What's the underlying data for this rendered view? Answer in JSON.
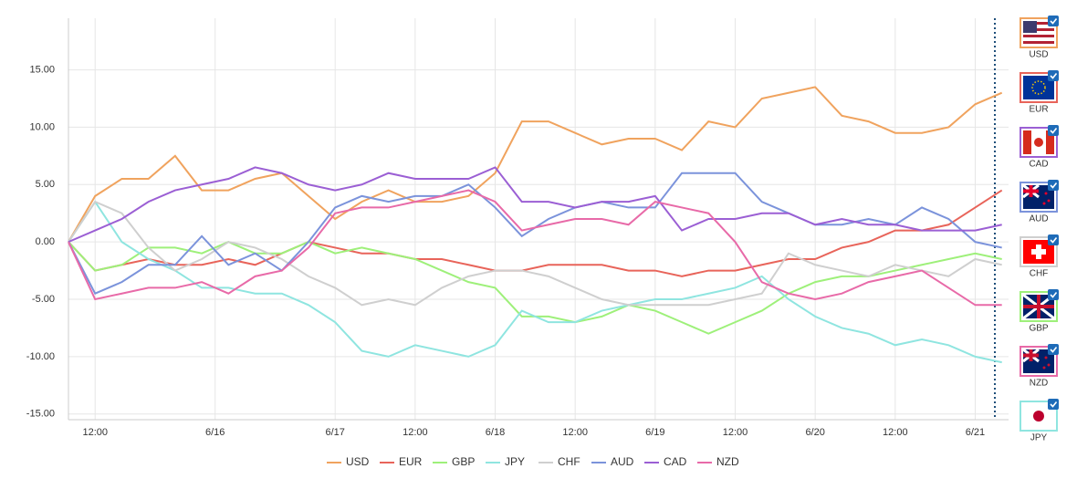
{
  "chart_data": {
    "type": "line",
    "x": [
      0,
      4,
      8,
      12,
      16,
      20,
      24,
      28,
      32,
      36,
      40,
      44,
      48,
      52,
      56,
      60,
      64,
      68,
      72,
      76,
      80,
      84,
      88,
      92,
      96,
      100,
      104,
      108,
      112,
      116,
      120,
      124,
      128,
      132,
      136,
      140
    ],
    "xlim": [
      0,
      141
    ],
    "xticks": [
      {
        "value": 4,
        "label": "12:00"
      },
      {
        "value": 22,
        "label": "6/16"
      },
      {
        "value": 40,
        "label": "6/17"
      },
      {
        "value": 52,
        "label": "12:00"
      },
      {
        "value": 64,
        "label": "6/18"
      },
      {
        "value": 76,
        "label": "12:00"
      },
      {
        "value": 88,
        "label": "6/19"
      },
      {
        "value": 100,
        "label": "12:00"
      },
      {
        "value": 112,
        "label": "6/20"
      },
      {
        "value": 124,
        "label": "12:00"
      },
      {
        "value": 136,
        "label": "6/21"
      }
    ],
    "ylim": [
      -15.5,
      19.5
    ],
    "yticks": [
      {
        "value": -15,
        "label": "-15.00"
      },
      {
        "value": -10,
        "label": "-10.00"
      },
      {
        "value": -5,
        "label": "-5.00"
      },
      {
        "value": 0,
        "label": "0.00"
      },
      {
        "value": 5,
        "label": "5.00"
      },
      {
        "value": 10,
        "label": "10.00"
      },
      {
        "value": 15,
        "label": "15.00"
      }
    ],
    "grid": true,
    "legend": "bottom",
    "series": [
      {
        "name": "USD",
        "color": "#f0a35e",
        "values": [
          0,
          4,
          5.5,
          5.5,
          7.5,
          4.5,
          4.5,
          5.5,
          6,
          4,
          2,
          3.5,
          4.5,
          3.5,
          3.5,
          4,
          6,
          10.5,
          10.5,
          9.5,
          8.5,
          9,
          9,
          8,
          10.5,
          10,
          12.5,
          13,
          13.5,
          11,
          10.5,
          9.5,
          9.5,
          10,
          12,
          13
        ]
      },
      {
        "name": "EUR",
        "color": "#e8645a",
        "values": [
          0,
          -2.5,
          -2,
          -1.5,
          -2,
          -2,
          -1.5,
          -2,
          -1,
          0,
          -0.5,
          -1,
          -1,
          -1.5,
          -1.5,
          -2,
          -2.5,
          -2.5,
          -2,
          -2,
          -2,
          -2.5,
          -2.5,
          -3,
          -2.5,
          -2.5,
          -2,
          -1.5,
          -1.5,
          -0.5,
          0,
          1,
          1,
          1.5,
          3,
          4.5
        ]
      },
      {
        "name": "GBP",
        "color": "#9ef07a",
        "values": [
          0,
          -2.5,
          -2,
          -0.5,
          -0.5,
          -1,
          0,
          -1,
          -1,
          0,
          -1,
          -0.5,
          -1,
          -1.5,
          -2.5,
          -3.5,
          -4,
          -6.5,
          -6.5,
          -7,
          -6.5,
          -5.5,
          -6,
          -7,
          -8,
          -7,
          -6,
          -4.5,
          -3.5,
          -3,
          -3,
          -2.5,
          -2,
          -1.5,
          -1,
          -1.5
        ]
      },
      {
        "name": "JPY",
        "color": "#8fe5e0",
        "values": [
          0,
          3.5,
          0,
          -1.5,
          -2.5,
          -4,
          -4,
          -4.5,
          -4.5,
          -5.5,
          -7,
          -9.5,
          -10,
          -9,
          -9.5,
          -10,
          -9,
          -6,
          -7,
          -7,
          -6,
          -5.5,
          -5,
          -5,
          -4.5,
          -4,
          -3,
          -5,
          -6.5,
          -7.5,
          -8,
          -9,
          -8.5,
          -9,
          -10,
          -10.5
        ]
      },
      {
        "name": "CHF",
        "color": "#cfcfcf",
        "values": [
          0,
          3.5,
          2.5,
          -0.5,
          -2.5,
          -1.5,
          0,
          -0.5,
          -1.5,
          -3,
          -4,
          -5.5,
          -5,
          -5.5,
          -4,
          -3,
          -2.5,
          -2.5,
          -3,
          -4,
          -5,
          -5.5,
          -5.5,
          -5.5,
          -5.5,
          -5,
          -4.5,
          -1,
          -2,
          -2.5,
          -3,
          -2,
          -2.5,
          -3,
          -1.5,
          -2
        ]
      },
      {
        "name": "AUD",
        "color": "#7b93db",
        "values": [
          0,
          -4.5,
          -3.5,
          -2,
          -2,
          0.5,
          -2,
          -1,
          -2.5,
          0,
          3,
          4,
          3.5,
          4,
          4,
          5,
          3,
          0.5,
          2,
          3,
          3.5,
          3,
          3,
          6,
          6,
          6,
          3.5,
          2.5,
          1.5,
          1.5,
          2,
          1.5,
          3,
          2,
          0,
          -0.5
        ]
      },
      {
        "name": "CAD",
        "color": "#9b5fd4",
        "values": [
          0,
          1,
          2,
          3.5,
          4.5,
          5,
          5.5,
          6.5,
          6,
          5,
          4.5,
          5,
          6,
          5.5,
          5.5,
          5.5,
          6.5,
          3.5,
          3.5,
          3,
          3.5,
          3.5,
          4,
          1,
          2,
          2,
          2.5,
          2.5,
          1.5,
          2,
          1.5,
          1.5,
          1,
          1,
          1,
          1.5
        ]
      },
      {
        "name": "NZD",
        "color": "#e86aa8",
        "values": [
          0,
          -5,
          -4.5,
          -4,
          -4,
          -3.5,
          -4.5,
          -3,
          -2.5,
          -0.5,
          2.5,
          3,
          3,
          3.5,
          4,
          4.5,
          3.5,
          1,
          1.5,
          2,
          2,
          1.5,
          3.5,
          3,
          2.5,
          0,
          -3.5,
          -4.5,
          -5,
          -4.5,
          -3.5,
          -3,
          -2.5,
          -4,
          -5.5,
          -5.5
        ]
      }
    ]
  },
  "currency_panel": [
    "USD",
    "EUR",
    "CAD",
    "AUD",
    "CHF",
    "GBP",
    "NZD",
    "JPY"
  ]
}
